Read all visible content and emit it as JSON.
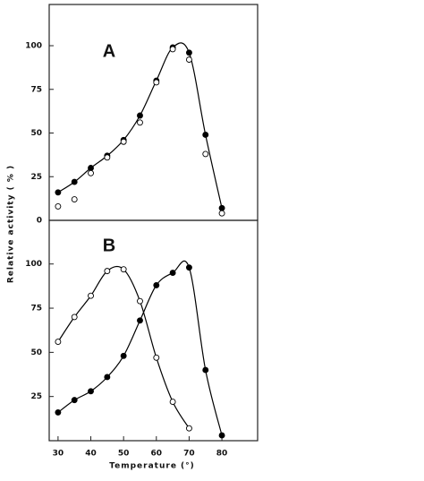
{
  "chart_data": [
    {
      "type": "scatter",
      "title": "A",
      "ylabel": "Relative activity ( % )",
      "xlim": [
        27.3,
        90.9
      ],
      "ylim": [
        0,
        123.6
      ],
      "yticks": [
        0,
        25,
        50,
        75,
        100
      ],
      "series": [
        {
          "color": "#000000",
          "marker_fill": "#000000",
          "line": true,
          "x": [
            30,
            35,
            40,
            45,
            50,
            55,
            60,
            65,
            70,
            75,
            80
          ],
          "values": [
            16,
            22,
            30,
            37,
            46,
            60,
            80,
            99,
            96,
            49,
            7
          ]
        },
        {
          "color": "#000000",
          "marker_fill": "#ffffff",
          "line": false,
          "x": [
            30,
            35,
            40,
            45,
            50,
            55,
            60,
            65,
            70,
            75,
            80
          ],
          "values": [
            8,
            12,
            27,
            36,
            45,
            56,
            79,
            98,
            92,
            38,
            4
          ]
        }
      ]
    },
    {
      "type": "scatter",
      "title": "B",
      "xlabel": "Temperature (°)",
      "xlim": [
        27.3,
        90.9
      ],
      "ylim": [
        0,
        124.7
      ],
      "yticks": [
        25,
        50,
        75,
        100
      ],
      "xticks": [
        30,
        40,
        50,
        60,
        70,
        80
      ],
      "series": [
        {
          "color": "#000000",
          "marker_fill": "#ffffff",
          "line": true,
          "x": [
            30,
            35,
            40,
            45,
            50,
            55,
            60,
            65,
            70
          ],
          "values": [
            56,
            70,
            82,
            96,
            97,
            79,
            47,
            22,
            7
          ]
        },
        {
          "color": "#000000",
          "marker_fill": "#000000",
          "line": true,
          "x": [
            30,
            35,
            40,
            45,
            50,
            55,
            60,
            65,
            70,
            75,
            80
          ],
          "values": [
            16,
            23,
            28,
            36,
            48,
            68,
            88,
            95,
            98,
            40,
            3
          ]
        }
      ]
    }
  ]
}
